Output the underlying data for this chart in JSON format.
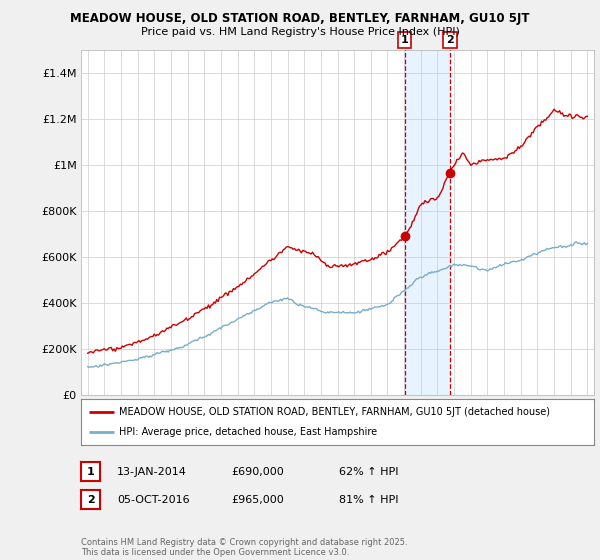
{
  "title1": "MEADOW HOUSE, OLD STATION ROAD, BENTLEY, FARNHAM, GU10 5JT",
  "title2": "Price paid vs. HM Land Registry's House Price Index (HPI)",
  "bg_color": "#f0f0f0",
  "plot_bg_color": "#ffffff",
  "red_line_label": "MEADOW HOUSE, OLD STATION ROAD, BENTLEY, FARNHAM, GU10 5JT (detached house)",
  "blue_line_label": "HPI: Average price, detached house, East Hampshire",
  "annotation1": {
    "num": "1",
    "date": "13-JAN-2014",
    "price": "£690,000",
    "hpi": "62% ↑ HPI"
  },
  "annotation2": {
    "num": "2",
    "date": "05-OCT-2016",
    "price": "£965,000",
    "hpi": "81% ↑ HPI"
  },
  "footer": "Contains HM Land Registry data © Crown copyright and database right 2025.\nThis data is licensed under the Open Government Licence v3.0.",
  "ylim": [
    0,
    1500000
  ],
  "yticks": [
    0,
    200000,
    400000,
    600000,
    800000,
    1000000,
    1200000,
    1400000
  ],
  "ytick_labels": [
    "£0",
    "£200K",
    "£400K",
    "£600K",
    "£800K",
    "£1M",
    "£1.2M",
    "£1.4M"
  ],
  "sale1_x": 2014.04,
  "sale1_y": 690000,
  "sale2_x": 2016.76,
  "sale2_y": 965000,
  "vline_color": "#cc0000",
  "shade_color": "#ddeeff",
  "red_color": "#cc0000",
  "blue_color": "#7aadcc",
  "xmin": 1995,
  "xmax": 2025
}
